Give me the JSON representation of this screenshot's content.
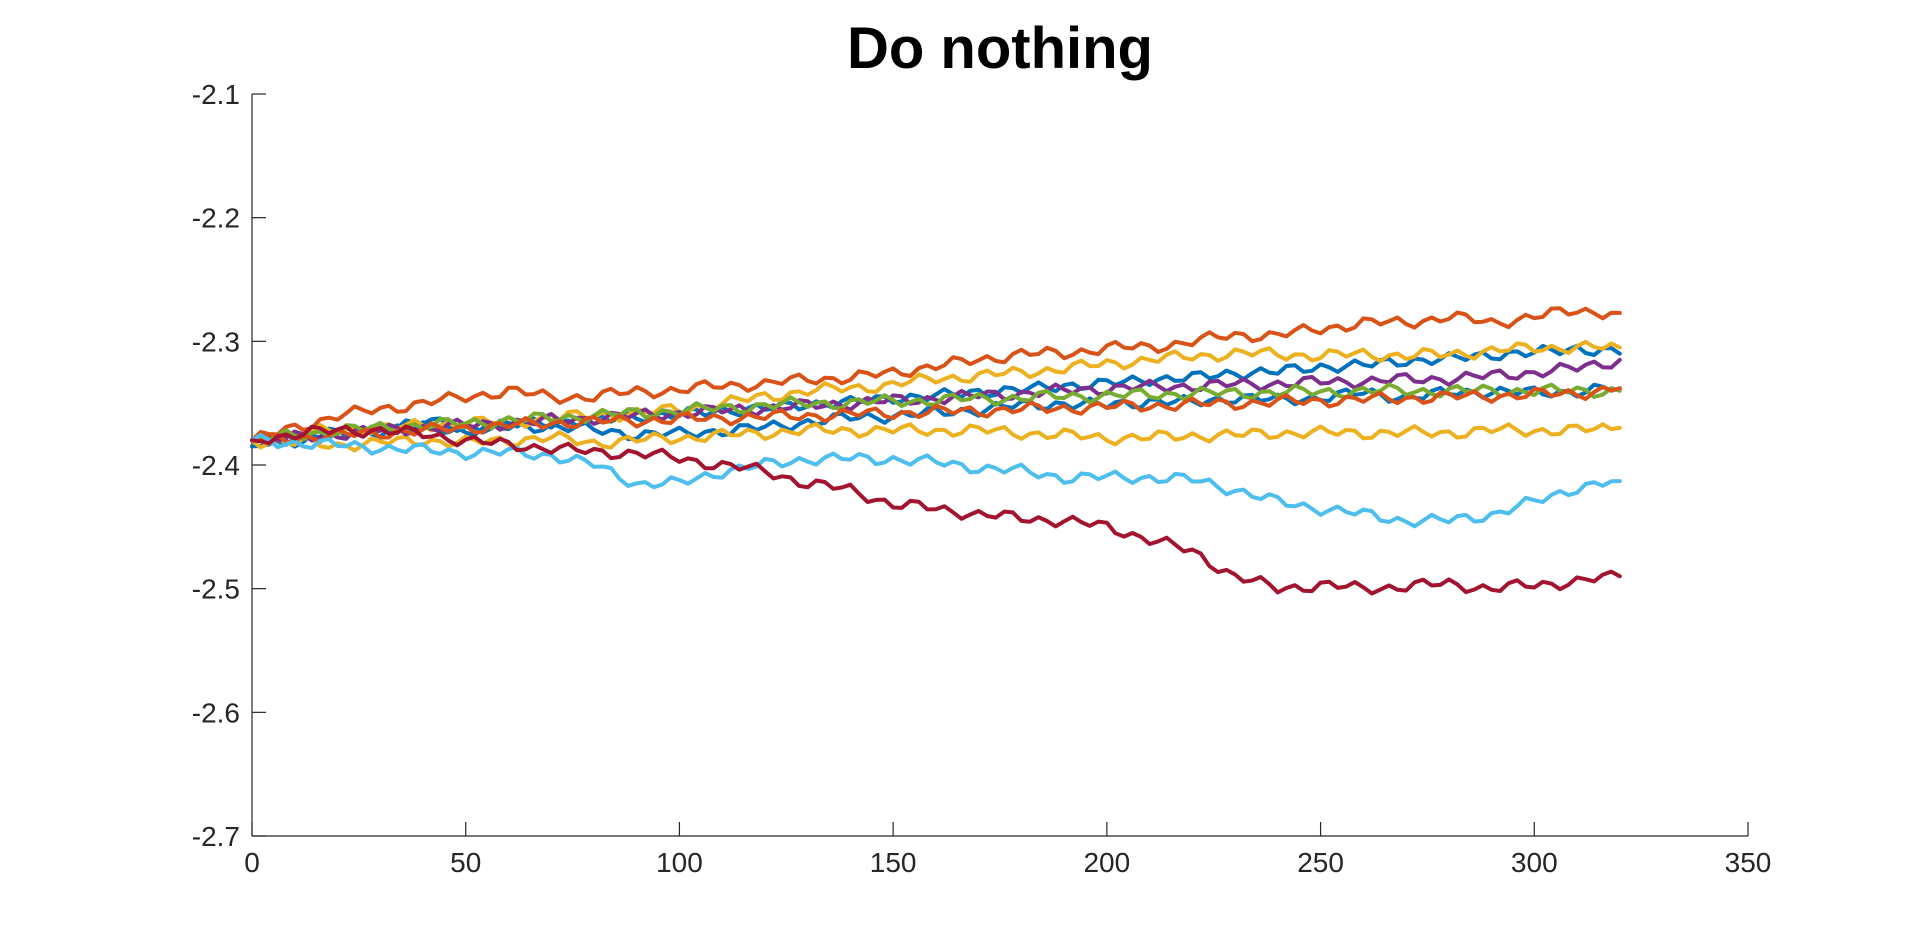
{
  "chart_data": {
    "type": "line",
    "title": "Do nothing",
    "xlabel": "",
    "ylabel": "",
    "xlim": [
      0,
      350
    ],
    "ylim": [
      -2.7,
      -2.1
    ],
    "xticks": [
      0,
      50,
      100,
      150,
      200,
      250,
      300,
      350
    ],
    "xtick_labels": [
      "0",
      "50",
      "100",
      "150",
      "200",
      "250",
      "300",
      "350"
    ],
    "yticks": [
      -2.7,
      -2.6,
      -2.5,
      -2.4,
      -2.3,
      -2.2,
      -2.1
    ],
    "ytick_labels": [
      "-2.7",
      "-2.6",
      "-2.5",
      "-2.4",
      "-2.3",
      "-2.2",
      "-2.1"
    ],
    "grid": false,
    "legend": "none",
    "series": [
      {
        "color": "#D95319",
        "x": [
          0,
          10,
          20,
          30,
          40,
          50,
          60,
          70,
          80,
          90,
          100,
          110,
          120,
          130,
          140,
          150,
          160,
          170,
          180,
          190,
          200,
          210,
          220,
          230,
          240,
          250,
          260,
          270,
          280,
          290,
          300,
          310,
          320
        ],
        "y": [
          -2.38,
          -2.37,
          -2.36,
          -2.355,
          -2.35,
          -2.345,
          -2.34,
          -2.345,
          -2.345,
          -2.34,
          -2.34,
          -2.335,
          -2.335,
          -2.33,
          -2.33,
          -2.325,
          -2.32,
          -2.315,
          -2.31,
          -2.31,
          -2.305,
          -2.305,
          -2.3,
          -2.295,
          -2.295,
          -2.29,
          -2.285,
          -2.285,
          -2.28,
          -2.285,
          -2.28,
          -2.275,
          -2.277
        ]
      },
      {
        "color": "#0072BD",
        "x": [
          0,
          10,
          20,
          30,
          40,
          50,
          60,
          70,
          80,
          90,
          100,
          110,
          120,
          130,
          140,
          150,
          160,
          170,
          180,
          190,
          200,
          210,
          220,
          230,
          240,
          250,
          260,
          270,
          280,
          290,
          300,
          310,
          320
        ],
        "y": [
          -2.385,
          -2.38,
          -2.375,
          -2.37,
          -2.365,
          -2.37,
          -2.368,
          -2.365,
          -2.365,
          -2.36,
          -2.36,
          -2.355,
          -2.355,
          -2.35,
          -2.35,
          -2.345,
          -2.345,
          -2.34,
          -2.34,
          -2.335,
          -2.335,
          -2.33,
          -2.33,
          -2.325,
          -2.325,
          -2.32,
          -2.32,
          -2.315,
          -2.315,
          -2.31,
          -2.31,
          -2.305,
          -2.31
        ]
      },
      {
        "color": "#0072BD",
        "x": [
          0,
          10,
          20,
          30,
          40,
          50,
          60,
          70,
          80,
          90,
          100,
          110,
          120,
          130,
          140,
          150,
          160,
          170,
          180,
          190,
          200,
          210,
          220,
          230,
          240,
          250,
          260,
          270,
          280,
          290,
          300,
          310,
          320
        ],
        "y": [
          -2.38,
          -2.378,
          -2.375,
          -2.372,
          -2.37,
          -2.372,
          -2.37,
          -2.368,
          -2.372,
          -2.375,
          -2.375,
          -2.372,
          -2.37,
          -2.365,
          -2.362,
          -2.36,
          -2.358,
          -2.355,
          -2.352,
          -2.35,
          -2.352,
          -2.348,
          -2.35,
          -2.345,
          -2.348,
          -2.345,
          -2.342,
          -2.345,
          -2.342,
          -2.34,
          -2.342,
          -2.34,
          -2.338
        ]
      },
      {
        "color": "#EDB120",
        "x": [
          0,
          10,
          20,
          30,
          40,
          50,
          60,
          70,
          80,
          90,
          100,
          110,
          120,
          130,
          140,
          150,
          160,
          170,
          180,
          190,
          200,
          210,
          220,
          230,
          240,
          250,
          260,
          270,
          280,
          290,
          300,
          310,
          320
        ],
        "y": [
          -2.38,
          -2.375,
          -2.372,
          -2.37,
          -2.368,
          -2.366,
          -2.365,
          -2.362,
          -2.36,
          -2.358,
          -2.355,
          -2.35,
          -2.345,
          -2.34,
          -2.338,
          -2.335,
          -2.33,
          -2.328,
          -2.325,
          -2.322,
          -2.318,
          -2.315,
          -2.312,
          -2.31,
          -2.31,
          -2.312,
          -2.31,
          -2.312,
          -2.31,
          -2.308,
          -2.305,
          -2.305,
          -2.305
        ]
      },
      {
        "color": "#EDB120",
        "x": [
          0,
          10,
          20,
          30,
          40,
          50,
          60,
          70,
          80,
          90,
          100,
          110,
          120,
          130,
          140,
          150,
          160,
          170,
          180,
          190,
          200,
          210,
          220,
          230,
          240,
          250,
          260,
          270,
          280,
          290,
          300,
          310,
          320
        ],
        "y": [
          -2.38,
          -2.382,
          -2.384,
          -2.382,
          -2.38,
          -2.382,
          -2.38,
          -2.378,
          -2.382,
          -2.38,
          -2.378,
          -2.376,
          -2.374,
          -2.372,
          -2.372,
          -2.372,
          -2.372,
          -2.372,
          -2.374,
          -2.376,
          -2.378,
          -2.378,
          -2.376,
          -2.376,
          -2.374,
          -2.374,
          -2.374,
          -2.374,
          -2.374,
          -2.372,
          -2.372,
          -2.372,
          -2.37
        ]
      },
      {
        "color": "#7E2F8E",
        "x": [
          0,
          10,
          20,
          30,
          40,
          50,
          60,
          70,
          80,
          90,
          100,
          110,
          120,
          130,
          140,
          150,
          160,
          170,
          180,
          190,
          200,
          210,
          220,
          230,
          240,
          250,
          260,
          270,
          280,
          290,
          300,
          310,
          320
        ],
        "y": [
          -2.38,
          -2.378,
          -2.375,
          -2.372,
          -2.37,
          -2.368,
          -2.366,
          -2.364,
          -2.362,
          -2.36,
          -2.358,
          -2.356,
          -2.354,
          -2.352,
          -2.35,
          -2.348,
          -2.346,
          -2.344,
          -2.342,
          -2.34,
          -2.338,
          -2.337,
          -2.336,
          -2.335,
          -2.334,
          -2.333,
          -2.332,
          -2.331,
          -2.33,
          -2.328,
          -2.325,
          -2.322,
          -2.315
        ]
      },
      {
        "color": "#77AC30",
        "x": [
          0,
          10,
          20,
          30,
          40,
          50,
          60,
          70,
          80,
          90,
          100,
          110,
          120,
          130,
          140,
          150,
          160,
          170,
          180,
          190,
          200,
          210,
          220,
          230,
          240,
          250,
          260,
          270,
          280,
          290,
          300,
          310,
          320
        ],
        "y": [
          -2.38,
          -2.376,
          -2.372,
          -2.37,
          -2.368,
          -2.366,
          -2.364,
          -2.362,
          -2.36,
          -2.358,
          -2.356,
          -2.354,
          -2.352,
          -2.35,
          -2.35,
          -2.348,
          -2.348,
          -2.346,
          -2.346,
          -2.344,
          -2.344,
          -2.343,
          -2.342,
          -2.342,
          -2.341,
          -2.341,
          -2.34,
          -2.34,
          -2.34,
          -2.34,
          -2.34,
          -2.34,
          -2.34
        ]
      },
      {
        "color": "#D95319",
        "x": [
          0,
          10,
          20,
          30,
          40,
          50,
          60,
          70,
          80,
          90,
          100,
          110,
          120,
          130,
          140,
          150,
          160,
          170,
          180,
          190,
          200,
          210,
          220,
          230,
          240,
          250,
          260,
          270,
          280,
          290,
          300,
          310,
          320
        ],
        "y": [
          -2.38,
          -2.378,
          -2.376,
          -2.374,
          -2.372,
          -2.37,
          -2.368,
          -2.366,
          -2.365,
          -2.364,
          -2.363,
          -2.362,
          -2.361,
          -2.36,
          -2.359,
          -2.358,
          -2.357,
          -2.356,
          -2.355,
          -2.354,
          -2.353,
          -2.352,
          -2.351,
          -2.35,
          -2.349,
          -2.348,
          -2.347,
          -2.346,
          -2.345,
          -2.344,
          -2.343,
          -2.342,
          -2.338
        ]
      },
      {
        "color": "#4DBEEE",
        "x": [
          0,
          10,
          20,
          30,
          40,
          50,
          60,
          70,
          80,
          90,
          100,
          110,
          120,
          130,
          140,
          150,
          160,
          170,
          180,
          190,
          200,
          210,
          220,
          230,
          240,
          250,
          260,
          270,
          280,
          290,
          300,
          310,
          320
        ],
        "y": [
          -2.38,
          -2.382,
          -2.384,
          -2.386,
          -2.388,
          -2.39,
          -2.39,
          -2.392,
          -2.4,
          -2.415,
          -2.415,
          -2.405,
          -2.4,
          -2.395,
          -2.395,
          -2.395,
          -2.398,
          -2.402,
          -2.405,
          -2.41,
          -2.41,
          -2.41,
          -2.412,
          -2.42,
          -2.43,
          -2.435,
          -2.44,
          -2.445,
          -2.445,
          -2.44,
          -2.43,
          -2.418,
          -2.413
        ]
      },
      {
        "color": "#A2142F",
        "x": [
          0,
          10,
          20,
          30,
          40,
          50,
          60,
          70,
          80,
          90,
          100,
          110,
          120,
          130,
          140,
          150,
          160,
          170,
          180,
          190,
          200,
          210,
          220,
          230,
          240,
          250,
          260,
          270,
          280,
          290,
          300,
          310,
          320
        ],
        "y": [
          -2.38,
          -2.375,
          -2.372,
          -2.372,
          -2.375,
          -2.38,
          -2.384,
          -2.386,
          -2.39,
          -2.39,
          -2.395,
          -2.4,
          -2.405,
          -2.415,
          -2.42,
          -2.432,
          -2.435,
          -2.44,
          -2.443,
          -2.445,
          -2.45,
          -2.46,
          -2.47,
          -2.49,
          -2.5,
          -2.497,
          -2.5,
          -2.498,
          -2.496,
          -2.5,
          -2.497,
          -2.494,
          -2.49
        ]
      }
    ]
  }
}
